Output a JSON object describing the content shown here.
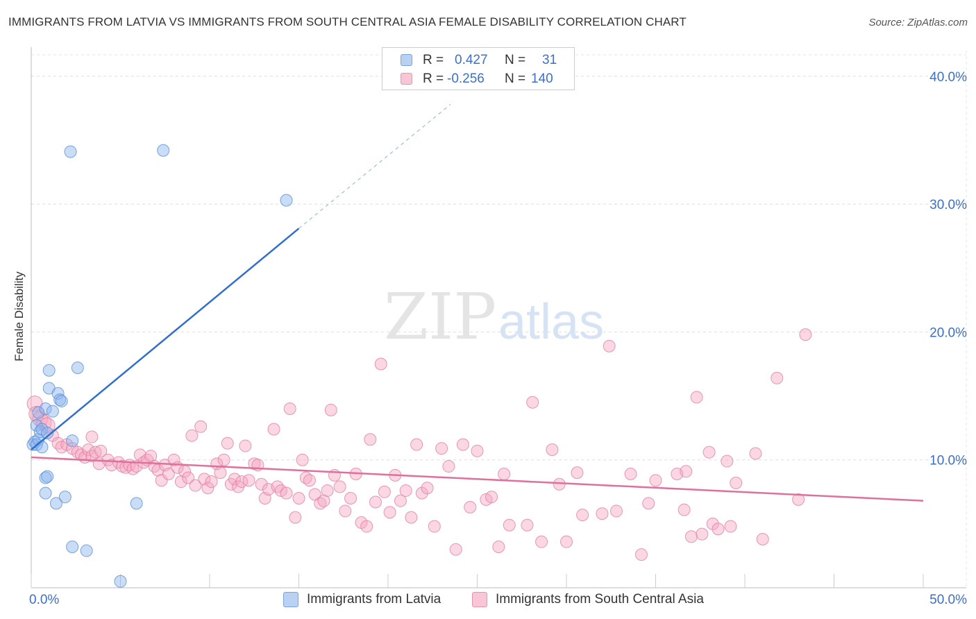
{
  "title": "IMMIGRANTS FROM LATVIA VS IMMIGRANTS FROM SOUTH CENTRAL ASIA FEMALE DISABILITY CORRELATION CHART",
  "source": "Source: ZipAtlas.com",
  "watermark": {
    "zip": "ZIP",
    "atlas": "atlas"
  },
  "legend": {
    "r_label": "R =",
    "n_label": "N =",
    "rows": [
      {
        "r": "0.427",
        "n": "31"
      },
      {
        "r": "-0.256",
        "n": "140"
      }
    ]
  },
  "chart_data": {
    "type": "scatter",
    "title": "IMMIGRANTS FROM LATVIA VS IMMIGRANTS FROM SOUTH CENTRAL ASIA FEMALE DISABILITY CORRELATION CHART",
    "xlabel": "",
    "ylabel": "Female Disability",
    "xlim": [
      0,
      50
    ],
    "ylim": [
      0,
      42
    ],
    "x_tick_labels": [
      "0.0%",
      "50.0%"
    ],
    "y_ticks": [
      10,
      20,
      30,
      40
    ],
    "y_tick_labels": [
      "10.0%",
      "20.0%",
      "30.0%",
      "40.0%"
    ],
    "grid": true,
    "legend_position": "top-center",
    "series": [
      {
        "name": "Immigrants from Latvia",
        "color": "#8ab4ee",
        "edge": "#5b8fd6",
        "line_color": "#2f6fcf",
        "trend": {
          "x0": 0,
          "y0": 10.8,
          "x1": 15,
          "y1": 28.1,
          "dash_to_x": 23.5,
          "dash_to_y": 37.8
        },
        "points": [
          [
            0.1,
            11.2
          ],
          [
            0.2,
            11.4
          ],
          [
            0.3,
            11.2
          ],
          [
            0.4,
            11.6
          ],
          [
            0.3,
            12.7
          ],
          [
            0.5,
            12.2
          ],
          [
            0.6,
            12.4
          ],
          [
            0.4,
            13.7
          ],
          [
            0.8,
            14.0
          ],
          [
            0.9,
            12.1
          ],
          [
            1.2,
            13.8
          ],
          [
            1.0,
            15.6
          ],
          [
            1.0,
            17.0
          ],
          [
            1.5,
            15.2
          ],
          [
            1.6,
            14.7
          ],
          [
            1.7,
            14.6
          ],
          [
            2.6,
            17.2
          ],
          [
            2.3,
            11.5
          ],
          [
            0.8,
            8.6
          ],
          [
            0.9,
            8.7
          ],
          [
            0.8,
            7.4
          ],
          [
            1.4,
            6.6
          ],
          [
            1.9,
            7.1
          ],
          [
            2.3,
            3.2
          ],
          [
            3.1,
            2.9
          ],
          [
            5.0,
            0.5
          ],
          [
            5.9,
            6.6
          ],
          [
            2.2,
            34.1
          ],
          [
            7.4,
            34.2
          ],
          [
            14.3,
            30.3
          ],
          [
            0.6,
            11.0
          ]
        ]
      },
      {
        "name": "Immigrants from South Central Asia",
        "color": "#f4a7c0",
        "edge": "#e47fa2",
        "line_color": "#e0709a",
        "trend": {
          "x0": 0,
          "y0": 10.2,
          "x1": 50,
          "y1": 6.8
        },
        "points": [
          [
            0.2,
            14.4
          ],
          [
            0.3,
            13.6
          ],
          [
            0.5,
            13.2
          ],
          [
            0.7,
            12.9
          ],
          [
            0.9,
            12.7
          ],
          [
            1.2,
            11.9
          ],
          [
            1.5,
            11.3
          ],
          [
            1.7,
            11.0
          ],
          [
            2.0,
            11.2
          ],
          [
            2.3,
            10.9
          ],
          [
            2.6,
            10.6
          ],
          [
            2.8,
            10.4
          ],
          [
            3.0,
            10.2
          ],
          [
            3.2,
            10.8
          ],
          [
            3.4,
            10.3
          ],
          [
            3.6,
            10.6
          ],
          [
            3.4,
            11.8
          ],
          [
            3.9,
            10.7
          ],
          [
            3.8,
            9.7
          ],
          [
            4.3,
            10.0
          ],
          [
            4.5,
            9.6
          ],
          [
            4.9,
            9.8
          ],
          [
            5.1,
            9.5
          ],
          [
            5.3,
            9.4
          ],
          [
            5.5,
            9.6
          ],
          [
            5.7,
            9.3
          ],
          [
            5.9,
            9.5
          ],
          [
            6.1,
            10.4
          ],
          [
            6.3,
            9.8
          ],
          [
            6.5,
            10.0
          ],
          [
            6.7,
            10.3
          ],
          [
            6.9,
            9.5
          ],
          [
            7.1,
            9.2
          ],
          [
            7.3,
            8.4
          ],
          [
            7.5,
            9.6
          ],
          [
            7.7,
            8.9
          ],
          [
            8.0,
            10.0
          ],
          [
            8.2,
            9.4
          ],
          [
            8.4,
            8.3
          ],
          [
            8.6,
            9.1
          ],
          [
            8.8,
            8.6
          ],
          [
            9.0,
            11.9
          ],
          [
            9.2,
            8.0
          ],
          [
            9.5,
            12.6
          ],
          [
            9.7,
            8.5
          ],
          [
            9.9,
            7.8
          ],
          [
            10.1,
            8.3
          ],
          [
            10.4,
            9.7
          ],
          [
            10.6,
            9.0
          ],
          [
            10.8,
            10.0
          ],
          [
            11.0,
            11.3
          ],
          [
            11.2,
            8.1
          ],
          [
            11.4,
            8.5
          ],
          [
            11.6,
            7.9
          ],
          [
            11.8,
            8.3
          ],
          [
            12.0,
            11.1
          ],
          [
            12.2,
            8.4
          ],
          [
            12.5,
            9.7
          ],
          [
            12.7,
            9.6
          ],
          [
            12.9,
            8.1
          ],
          [
            13.1,
            7.0
          ],
          [
            13.3,
            7.7
          ],
          [
            13.6,
            12.4
          ],
          [
            13.8,
            7.9
          ],
          [
            14.0,
            7.6
          ],
          [
            14.3,
            7.4
          ],
          [
            14.5,
            14.0
          ],
          [
            14.8,
            5.5
          ],
          [
            15.0,
            7.0
          ],
          [
            15.2,
            10.0
          ],
          [
            15.4,
            8.6
          ],
          [
            15.6,
            8.4
          ],
          [
            15.9,
            7.3
          ],
          [
            16.2,
            6.6
          ],
          [
            16.4,
            6.8
          ],
          [
            16.6,
            7.6
          ],
          [
            16.8,
            13.9
          ],
          [
            17.0,
            8.8
          ],
          [
            17.3,
            7.9
          ],
          [
            17.6,
            6.0
          ],
          [
            17.9,
            7.0
          ],
          [
            18.2,
            8.9
          ],
          [
            18.5,
            5.1
          ],
          [
            18.8,
            4.8
          ],
          [
            19.0,
            11.6
          ],
          [
            19.3,
            6.7
          ],
          [
            19.6,
            17.5
          ],
          [
            19.8,
            7.5
          ],
          [
            20.1,
            5.9
          ],
          [
            20.4,
            8.8
          ],
          [
            20.7,
            6.8
          ],
          [
            21.0,
            7.6
          ],
          [
            21.3,
            5.5
          ],
          [
            21.6,
            11.2
          ],
          [
            21.9,
            7.4
          ],
          [
            22.2,
            7.8
          ],
          [
            22.6,
            4.8
          ],
          [
            23.0,
            10.9
          ],
          [
            23.4,
            9.5
          ],
          [
            23.8,
            3.0
          ],
          [
            24.2,
            11.2
          ],
          [
            24.6,
            6.3
          ],
          [
            25.0,
            10.7
          ],
          [
            25.5,
            6.9
          ],
          [
            25.8,
            7.1
          ],
          [
            26.2,
            3.2
          ],
          [
            26.5,
            8.9
          ],
          [
            26.8,
            4.9
          ],
          [
            27.8,
            4.9
          ],
          [
            28.1,
            14.5
          ],
          [
            28.6,
            3.6
          ],
          [
            29.2,
            10.8
          ],
          [
            29.6,
            8.1
          ],
          [
            30.0,
            3.6
          ],
          [
            30.6,
            9.0
          ],
          [
            30.9,
            5.7
          ],
          [
            32.0,
            5.8
          ],
          [
            32.4,
            18.9
          ],
          [
            32.8,
            6.0
          ],
          [
            33.6,
            8.9
          ],
          [
            34.2,
            2.6
          ],
          [
            34.6,
            6.6
          ],
          [
            35.0,
            8.4
          ],
          [
            36.2,
            8.9
          ],
          [
            36.7,
            9.1
          ],
          [
            36.6,
            6.1
          ],
          [
            37.0,
            4.0
          ],
          [
            37.3,
            14.9
          ],
          [
            37.6,
            4.2
          ],
          [
            38.0,
            10.6
          ],
          [
            38.2,
            5.0
          ],
          [
            38.5,
            4.6
          ],
          [
            39.0,
            9.9
          ],
          [
            39.2,
            4.8
          ],
          [
            39.5,
            8.2
          ],
          [
            40.6,
            10.5
          ],
          [
            41.0,
            3.8
          ],
          [
            41.8,
            16.4
          ],
          [
            43.4,
            19.8
          ],
          [
            43.0,
            6.9
          ]
        ]
      }
    ]
  }
}
